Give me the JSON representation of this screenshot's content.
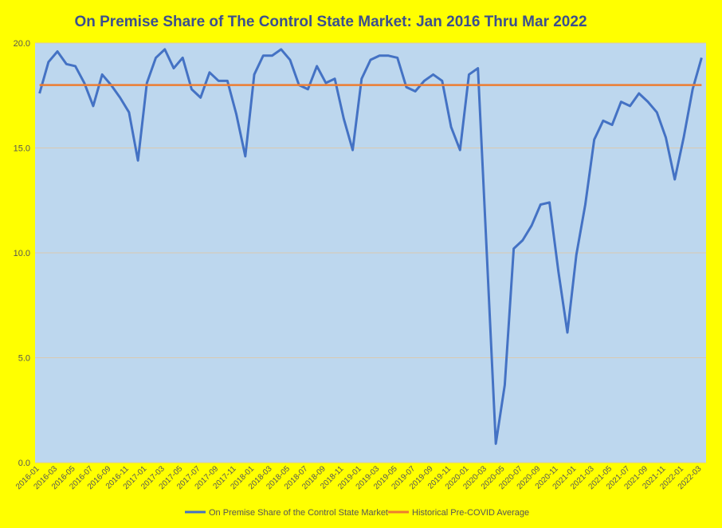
{
  "chart_data": {
    "type": "line",
    "title": "On Premise Share of The Control State Market: Jan 2016 Thru Mar 2022",
    "xlabel": "",
    "ylabel": "",
    "ylim": [
      0,
      20
    ],
    "yticks": [
      "0.0",
      "5.0",
      "10.0",
      "15.0",
      "20.0"
    ],
    "grid": true,
    "legend_position": "bottom",
    "plot_background": "#bdd7ee",
    "page_background": "#ffff00",
    "x": [
      "2016-01",
      "2016-02",
      "2016-03",
      "2016-04",
      "2016-05",
      "2016-06",
      "2016-07",
      "2016-08",
      "2016-09",
      "2016-10",
      "2016-11",
      "2016-12",
      "2017-01",
      "2017-02",
      "2017-03",
      "2017-04",
      "2017-05",
      "2017-06",
      "2017-07",
      "2017-08",
      "2017-09",
      "2017-10",
      "2017-11",
      "2017-12",
      "2018-01",
      "2018-02",
      "2018-03",
      "2018-04",
      "2018-05",
      "2018-06",
      "2018-07",
      "2018-08",
      "2018-09",
      "2018-10",
      "2018-11",
      "2018-12",
      "2019-01",
      "2019-02",
      "2019-03",
      "2019-04",
      "2019-05",
      "2019-06",
      "2019-07",
      "2019-08",
      "2019-09",
      "2019-10",
      "2019-11",
      "2019-12",
      "2020-01",
      "2020-02",
      "2020-03",
      "2020-04",
      "2020-05",
      "2020-06",
      "2020-07",
      "2020-08",
      "2020-09",
      "2020-10",
      "2020-11",
      "2020-12",
      "2021-01",
      "2021-02",
      "2021-03",
      "2021-04",
      "2021-05",
      "2021-06",
      "2021-07",
      "2021-08",
      "2021-09",
      "2021-10",
      "2021-11",
      "2021-12",
      "2022-01",
      "2022-02",
      "2022-03"
    ],
    "xtick_labels": [
      "2016-01",
      "2016-03",
      "2016-05",
      "2016-07",
      "2016-09",
      "2016-11",
      "2017-01",
      "2017-03",
      "2017-05",
      "2017-07",
      "2017-09",
      "2017-11",
      "2018-01",
      "2018-03",
      "2018-05",
      "2018-07",
      "2018-09",
      "2018-11",
      "2019-01",
      "2019-03",
      "2019-05",
      "2019-07",
      "2019-09",
      "2019-11",
      "2020-01",
      "2020-03",
      "2020-05",
      "2020-07",
      "2020-09",
      "2020-11",
      "2021-01",
      "2021-03",
      "2021-05",
      "2021-07",
      "2021-09",
      "2021-11",
      "2022-01",
      "2022-03"
    ],
    "series": [
      {
        "name": "On Premise Share of the Control State Market",
        "color": "#4472c4",
        "values": [
          17.6,
          19.1,
          19.6,
          19.0,
          18.9,
          18.1,
          17.0,
          18.5,
          18.0,
          17.4,
          16.7,
          14.4,
          18.1,
          19.3,
          19.7,
          18.8,
          19.3,
          17.8,
          17.4,
          18.6,
          18.2,
          18.2,
          16.6,
          14.6,
          18.5,
          19.4,
          19.4,
          19.7,
          19.2,
          18.0,
          17.8,
          18.9,
          18.1,
          18.3,
          16.4,
          14.9,
          18.3,
          19.2,
          19.4,
          19.4,
          19.3,
          17.9,
          17.7,
          18.2,
          18.5,
          18.2,
          16.0,
          14.9,
          18.5,
          18.8,
          9.9,
          0.9,
          3.7,
          10.2,
          10.6,
          11.3,
          12.3,
          12.4,
          9.1,
          6.2,
          9.9,
          12.3,
          15.4,
          16.3,
          16.1,
          17.2,
          17.0,
          17.6,
          17.2,
          16.7,
          15.5,
          13.5,
          15.5,
          17.8,
          19.3
        ]
      },
      {
        "name": "Historical Pre-COVID Average",
        "color": "#ed7d31",
        "values": [
          18.0,
          18.0,
          18.0,
          18.0,
          18.0,
          18.0,
          18.0,
          18.0,
          18.0,
          18.0,
          18.0,
          18.0,
          18.0,
          18.0,
          18.0,
          18.0,
          18.0,
          18.0,
          18.0,
          18.0,
          18.0,
          18.0,
          18.0,
          18.0,
          18.0,
          18.0,
          18.0,
          18.0,
          18.0,
          18.0,
          18.0,
          18.0,
          18.0,
          18.0,
          18.0,
          18.0,
          18.0,
          18.0,
          18.0,
          18.0,
          18.0,
          18.0,
          18.0,
          18.0,
          18.0,
          18.0,
          18.0,
          18.0,
          18.0,
          18.0,
          18.0,
          18.0,
          18.0,
          18.0,
          18.0,
          18.0,
          18.0,
          18.0,
          18.0,
          18.0,
          18.0,
          18.0,
          18.0,
          18.0,
          18.0,
          18.0,
          18.0,
          18.0,
          18.0,
          18.0,
          18.0,
          18.0,
          18.0,
          18.0,
          18.0
        ]
      }
    ]
  }
}
